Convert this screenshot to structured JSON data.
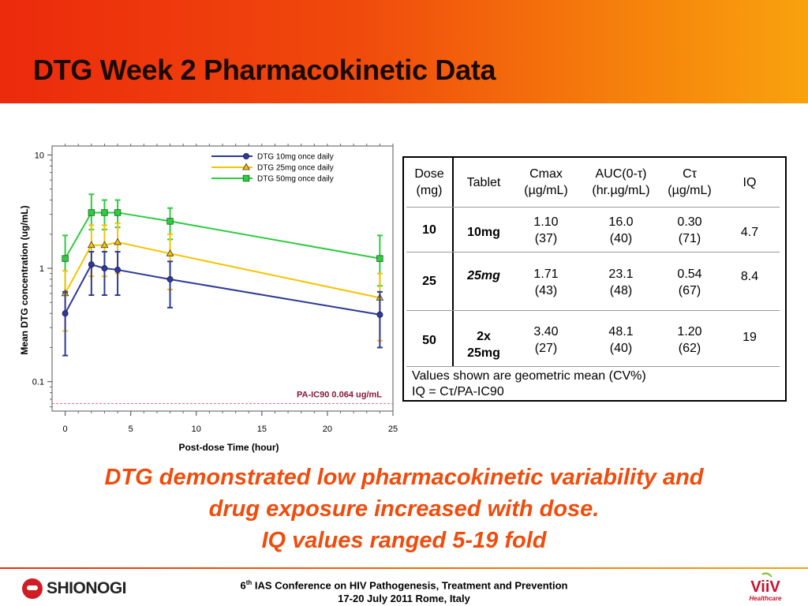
{
  "header": {
    "title": "DTG Week 2 Pharmacokinetic Data"
  },
  "chart_data": {
    "type": "line",
    "ylog": true,
    "xlabel": "Post-dose Time (hour)",
    "ylabel": "Mean DTG concentration (ug/mL)",
    "xlim": [
      -1,
      25
    ],
    "ylim": [
      0.055,
      12
    ],
    "xticks": [
      0,
      5,
      10,
      15,
      20,
      25
    ],
    "yticks": [
      10,
      1,
      0.1
    ],
    "legend_position": "top-right",
    "series": [
      {
        "name": "DTG 10mg once daily",
        "color": "#2e3a95",
        "marker": "circle",
        "x": [
          0,
          2,
          3,
          4,
          8,
          24
        ],
        "y": [
          0.4,
          1.08,
          1.0,
          0.97,
          0.8,
          0.39
        ],
        "err_low": [
          0.17,
          0.58,
          0.58,
          0.58,
          0.45,
          0.2
        ],
        "err_high": [
          0.62,
          1.4,
          1.4,
          1.4,
          1.15,
          0.62
        ]
      },
      {
        "name": "DTG 25mg once daily",
        "color": "#f5c400",
        "marker": "triangle",
        "x": [
          0,
          2,
          3,
          4,
          8,
          24
        ],
        "y": [
          0.6,
          1.6,
          1.6,
          1.7,
          1.35,
          0.55
        ],
        "err_low": [
          0.28,
          0.85,
          0.85,
          0.9,
          0.65,
          0.23
        ],
        "err_high": [
          0.95,
          2.4,
          2.4,
          2.5,
          2.0,
          0.9
        ]
      },
      {
        "name": "DTG 50mg once daily",
        "color": "#2ecc40",
        "marker": "square",
        "x": [
          0,
          2,
          3,
          4,
          8,
          24
        ],
        "y": [
          1.22,
          3.1,
          3.1,
          3.1,
          2.6,
          1.22
        ],
        "err_low": [
          0.6,
          2.2,
          2.2,
          2.3,
          1.8,
          0.7
        ],
        "err_high": [
          1.95,
          4.5,
          4.0,
          4.0,
          3.4,
          1.95
        ]
      }
    ],
    "reference_line": {
      "label": "PA-IC90  0.064 ug/mL",
      "value": 0.064,
      "color": "#e86fa0"
    }
  },
  "table": {
    "headers": [
      [
        "Dose",
        "(mg)"
      ],
      [
        "Tablet"
      ],
      [
        "Cmax",
        "(µg/mL)"
      ],
      [
        "AUC(0-τ)",
        "(hr.µg/mL)"
      ],
      [
        "Cτ",
        "(µg/mL)"
      ],
      [
        "IQ"
      ]
    ],
    "rows": [
      {
        "dose": "10",
        "tablet": [
          "10mg"
        ],
        "cmax": [
          "1.10",
          "(37)"
        ],
        "auc": [
          "16.0",
          "(40)"
        ],
        "ctau": [
          "0.30",
          "(71)"
        ],
        "iq": "4.7"
      },
      {
        "dose": "25",
        "tablet": [
          "25mg"
        ],
        "cmax": [
          "1.71",
          "(43)"
        ],
        "auc": [
          "23.1",
          "(48)"
        ],
        "ctau": [
          "0.54",
          "(67)"
        ],
        "iq": "8.4"
      },
      {
        "dose": "50",
        "tablet": [
          "2x",
          "25mg"
        ],
        "cmax": [
          "3.40",
          "(27)"
        ],
        "auc": [
          "48.1",
          "(40)"
        ],
        "ctau": [
          "1.20",
          "(62)"
        ],
        "iq": "19"
      }
    ],
    "notes": [
      "Values shown are geometric mean (CV%)",
      "IQ = Cτ/PA-IC90"
    ]
  },
  "conclusion": [
    "DTG demonstrated low pharmacokinetic variability and",
    "drug exposure increased with dose.",
    "IQ values ranged 5-19 fold"
  ],
  "footer": {
    "company_left": "SHIONOGI",
    "conference_ordinal": "6",
    "conference_suffix": "th",
    "conference_line1": " IAS Conference on HIV Pathogenesis, Treatment and Prevention",
    "conference_line2": "17-20 July 2011 Rome, Italy",
    "company_right": "ViiV",
    "company_right_sub": "Healthcare"
  }
}
